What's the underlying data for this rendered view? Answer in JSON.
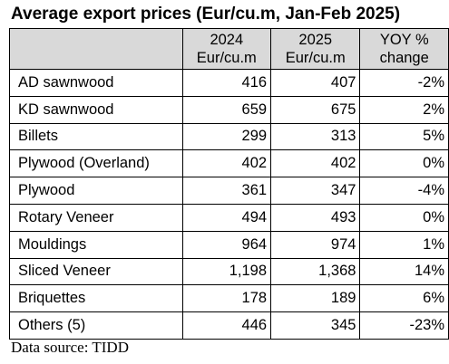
{
  "title": "Average export prices (Eur/cu.m, Jan-Feb 2025)",
  "table": {
    "headers": [
      {
        "line1": "",
        "line2": ""
      },
      {
        "line1": "2024",
        "line2": "Eur/cu.m"
      },
      {
        "line1": "2025",
        "line2": "Eur/cu.m"
      },
      {
        "line1": "YOY %",
        "line2": "change"
      }
    ],
    "rows": [
      {
        "product": "AD sawnwood",
        "y2024": "416",
        "y2025": "407",
        "change": "-2%"
      },
      {
        "product": "KD sawnwood",
        "y2024": "659",
        "y2025": "675",
        "change": "2%"
      },
      {
        "product": "Billets",
        "y2024": "299",
        "y2025": "313",
        "change": "5%"
      },
      {
        "product": "Plywood (Overland)",
        "y2024": "402",
        "y2025": "402",
        "change": "0%"
      },
      {
        "product": "Plywood",
        "y2024": "361",
        "y2025": "347",
        "change": "-4%"
      },
      {
        "product": "Rotary Veneer",
        "y2024": "494",
        "y2025": "493",
        "change": "0%"
      },
      {
        "product": "Mouldings",
        "y2024": "964",
        "y2025": "974",
        "change": "1%"
      },
      {
        "product": "Sliced Veneer",
        "y2024": "1,198",
        "y2025": "1,368",
        "change": "14%"
      },
      {
        "product": "Briquettes",
        "y2024": "178",
        "y2025": "189",
        "change": "6%"
      },
      {
        "product": "Others (5)",
        "y2024": "446",
        "y2025": "345",
        "change": "-23%"
      }
    ]
  },
  "source": "Data source: TIDD"
}
